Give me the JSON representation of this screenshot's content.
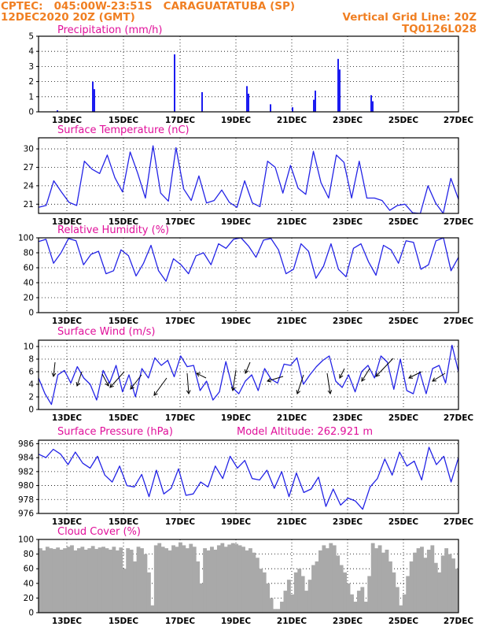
{
  "header": {
    "line1_left": "CPTEC:   045:00W-23:51S   CARAGUATATUBA (SP)",
    "line2_left": "12DEC2020 20Z (GMT)",
    "line2_right": "Vertical Grid Line: 20Z",
    "line3_right": "TQ0126L028",
    "color": "#f07f22"
  },
  "date_labels": [
    "13DEC",
    "15DEC",
    "17DEC",
    "19DEC",
    "21DEC",
    "23DEC",
    "25DEC",
    "27DEC"
  ],
  "colors": {
    "title": "#e0109a",
    "line": "#2323e6",
    "bar": "#1c1cf0",
    "cloud": "#a9a9a9",
    "grid": "#000000"
  },
  "chart_data": [
    {
      "type": "bar",
      "title": "Precipitation (mm/h)",
      "ylim": [
        0,
        5
      ],
      "yticks": [
        0,
        1,
        2,
        3,
        4,
        5
      ],
      "x": [
        "13DEC",
        "14DEC",
        "16DEC",
        "16DEC",
        "17DEC",
        "18DEC",
        "19DEC",
        "20DEC",
        "21DEC",
        "22DEC",
        "22DEC",
        "23DEC",
        "23DEC",
        "24DEC",
        "24DEC"
      ],
      "values": [
        0.1,
        2.0,
        1.5,
        3.8,
        1.3,
        1.7,
        1.2,
        0.5,
        0.3,
        0.8,
        1.4,
        3.5,
        2.8,
        1.1,
        0.7
      ]
    },
    {
      "type": "line",
      "title": "Surface Temperature (nC)",
      "ylim": [
        19.5,
        31.8
      ],
      "yticks": [
        21,
        24,
        27,
        30
      ],
      "values": [
        20.5,
        20.8,
        24.8,
        23.0,
        21.3,
        20.8,
        28.0,
        26.7,
        26.0,
        29.0,
        25.3,
        23.0,
        29.5,
        26.0,
        22.0,
        30.5,
        22.8,
        21.5,
        30.2,
        23.5,
        21.6,
        25.6,
        21.2,
        21.6,
        23.3,
        21.3,
        20.5,
        24.8,
        21.2,
        20.6,
        28.0,
        27.0,
        22.8,
        27.3,
        23.6,
        22.6,
        29.6,
        24.5,
        22.0,
        29.0,
        27.8,
        22.0,
        28.0,
        22.0,
        22.0,
        21.6,
        20.0,
        20.8,
        21.0,
        19.6,
        19.5,
        24.0,
        21.2,
        19.5,
        25.2,
        21.8
      ]
    },
    {
      "type": "line",
      "title": "Relative Humidity (%)",
      "ylim": [
        0,
        100
      ],
      "yticks": [
        0,
        20,
        40,
        60,
        80,
        100
      ],
      "values": [
        95,
        98,
        66,
        80,
        99,
        96,
        64,
        78,
        82,
        52,
        56,
        84,
        76,
        49,
        66,
        90,
        56,
        42,
        72,
        64,
        52,
        76,
        80,
        64,
        92,
        86,
        98,
        100,
        89,
        74,
        97,
        99,
        84,
        52,
        58,
        92,
        82,
        46,
        62,
        92,
        58,
        48,
        86,
        92,
        68,
        50,
        90,
        84,
        66,
        96,
        94,
        58,
        64,
        96,
        100,
        56,
        74
      ]
    },
    {
      "type": "line",
      "title": "Surface Wind (m/s)",
      "ylim": [
        0,
        11
      ],
      "yticks": [
        0,
        2,
        4,
        6,
        8,
        10
      ],
      "values": [
        5.0,
        2.5,
        0.8,
        5.5,
        6.2,
        4.2,
        6.8,
        5.0,
        4.0,
        1.5,
        6.2,
        4.2,
        7.0,
        2.8,
        5.5,
        2.0,
        6.5,
        5.0,
        8.2,
        7.0,
        7.8,
        5.2,
        8.5,
        6.8,
        7.0,
        3.0,
        4.5,
        1.5,
        2.8,
        7.6,
        3.5,
        2.5,
        4.5,
        5.5,
        3.0,
        6.5,
        4.8,
        4.2,
        7.2,
        7.0,
        8.2,
        4.0,
        5.5,
        6.8,
        7.8,
        8.5,
        4.5,
        3.5,
        5.5,
        2.8,
        6.0,
        7.0,
        5.0,
        8.5,
        7.5,
        3.2,
        8.0,
        3.0,
        2.5,
        6.0,
        2.5,
        6.5,
        7.0,
        4.2,
        10.2,
        6.0
      ]
    },
    {
      "type": "line",
      "title": "Surface Pressure (hPa)",
      "annotation": "Model Altitude: 262.921 m",
      "ylim": [
        976,
        986.5
      ],
      "yticks": [
        976,
        978,
        980,
        982,
        984,
        986
      ],
      "values": [
        984.5,
        984.0,
        985.2,
        984.5,
        983.0,
        984.8,
        983.2,
        982.5,
        984.2,
        981.5,
        980.5,
        982.8,
        980.0,
        979.8,
        981.6,
        978.4,
        982.2,
        978.8,
        979.6,
        982.4,
        978.6,
        978.8,
        980.5,
        979.8,
        982.8,
        981.0,
        984.2,
        982.5,
        983.6,
        981.0,
        980.8,
        982.2,
        979.6,
        982.0,
        978.4,
        981.8,
        979.0,
        979.5,
        981.2,
        977.0,
        979.5,
        977.2,
        978.2,
        977.8,
        976.6,
        979.8,
        981.0,
        983.8,
        981.5,
        984.8,
        982.8,
        983.5,
        980.8,
        985.5,
        983.0,
        984.2,
        980.5,
        984.0
      ]
    },
    {
      "type": "bar",
      "title": "Cloud Cover (%)",
      "ylim": [
        0,
        100
      ],
      "yticks": [
        0,
        20,
        40,
        60,
        80,
        100
      ],
      "values": [
        88,
        85,
        90,
        88,
        87,
        89,
        86,
        88,
        90,
        92,
        85,
        88,
        90,
        86,
        88,
        91,
        87,
        89,
        90,
        88,
        86,
        90,
        85,
        89,
        60,
        88,
        86,
        70,
        90,
        88,
        80,
        55,
        10,
        92,
        95,
        90,
        88,
        85,
        92,
        90,
        96,
        92,
        88,
        94,
        90,
        70,
        40,
        88,
        85,
        90,
        86,
        92,
        95,
        90,
        93,
        95,
        94,
        92,
        90,
        85,
        88,
        82,
        75,
        60,
        55,
        40,
        20,
        5,
        5,
        15,
        30,
        45,
        25,
        55,
        60,
        50,
        30,
        45,
        65,
        70,
        85,
        92,
        88,
        95,
        92,
        78,
        65,
        55,
        40,
        25,
        15,
        30,
        35,
        15,
        50,
        95,
        88,
        92,
        82,
        86,
        70,
        55,
        35,
        10,
        25,
        50,
        70,
        82,
        88,
        90,
        75,
        86,
        92,
        68,
        55,
        78,
        88,
        80,
        74,
        60
      ]
    }
  ]
}
